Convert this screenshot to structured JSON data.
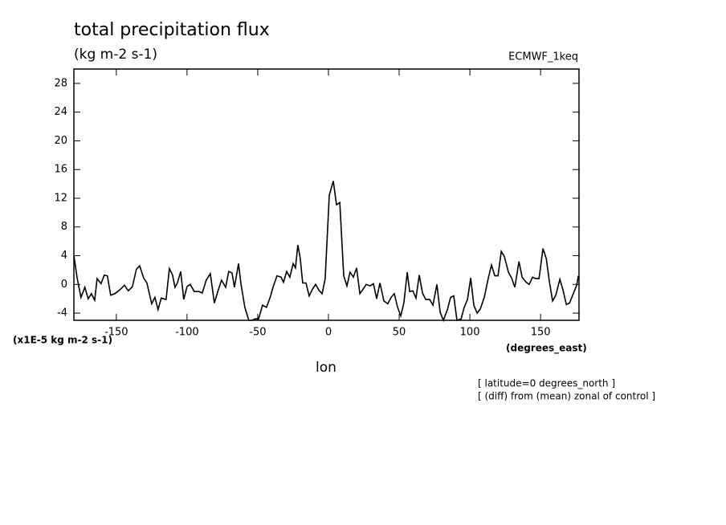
{
  "chart_data": {
    "type": "line",
    "title": "total precipitation flux",
    "subtitle": "(kg m-2 s-1)",
    "dataset_label": "ECMWF_1keq",
    "y_units_label": "(x1E-5 kg m-2 s-1)",
    "x_units_label": "(degrees_east)",
    "xlabel": "lon",
    "notes": [
      "[ latitude=0 degrees_north ]",
      "[ (diff) from (mean) zonal of control ]"
    ],
    "color": "#000000",
    "xlim": [
      -180,
      177.1875
    ],
    "ylim": [
      -5,
      30
    ],
    "xticks": [
      -150,
      -100,
      -50,
      0,
      50,
      100,
      150
    ],
    "yticks": [
      -4,
      0,
      4,
      8,
      12,
      16,
      20,
      24,
      28
    ],
    "x": [
      -180,
      -177.8,
      -175.0,
      -172.2,
      -169.9,
      -167.6,
      -165.3,
      -163.6,
      -160.8,
      -158.5,
      -156.3,
      -154.0,
      -151.1,
      -147.2,
      -144.3,
      -141.5,
      -138.6,
      -135.8,
      -133.5,
      -130.7,
      -128.4,
      -125.0,
      -122.7,
      -120.5,
      -118.2,
      -114.8,
      -112.5,
      -110.2,
      -108.5,
      -106.8,
      -104.5,
      -102.3,
      -100.0,
      -97.7,
      -94.9,
      -91.5,
      -89.2,
      -86.4,
      -83.5,
      -80.7,
      -78.4,
      -75.6,
      -72.7,
      -70.5,
      -68.2,
      -66.5,
      -63.6,
      -61.9,
      -59.1,
      -56.3,
      -54.0,
      -51.7,
      -49.4,
      -46.6,
      -43.8,
      -40.9,
      -39.2,
      -36.4,
      -33.5,
      -31.8,
      -29.5,
      -27.3,
      -25.0,
      -23.3,
      -21.6,
      -19.9,
      -18.2,
      -15.9,
      -13.6,
      -11.4,
      -9.1,
      -6.8,
      -4.5,
      -2.3,
      0.6,
      3.4,
      5.7,
      8.0,
      10.8,
      13.1,
      15.3,
      17.6,
      19.9,
      22.2,
      24.4,
      26.7,
      29.5,
      31.8,
      34.1,
      36.4,
      39.2,
      42.0,
      44.3,
      46.6,
      48.9,
      51.1,
      53.4,
      55.7,
      57.4,
      59.7,
      61.9,
      64.2,
      66.5,
      68.8,
      71.6,
      73.9,
      76.7,
      79.0,
      81.3,
      84.1,
      86.4,
      88.6,
      90.9,
      93.8,
      96.0,
      98.3,
      100.6,
      102.8,
      105.1,
      107.4,
      110.2,
      113.1,
      115.3,
      117.6,
      119.9,
      122.2,
      124.4,
      127.3,
      129.5,
      131.8,
      134.7,
      136.9,
      139.8,
      142.0,
      144.3,
      146.6,
      148.9,
      151.7,
      154.0,
      156.3,
      158.5,
      160.8,
      163.6,
      165.9,
      168.2,
      170.5,
      172.7,
      175.6,
      176.7
    ],
    "values": [
      4.0,
      1.0,
      -1.8,
      -0.4,
      -2.0,
      -1.3,
      -2.2,
      0.8,
      0.1,
      1.3,
      1.2,
      -1.5,
      -1.3,
      -0.7,
      -0.1,
      -0.9,
      -0.3,
      2.1,
      2.6,
      0.9,
      0.2,
      -2.7,
      -1.8,
      -3.5,
      -1.9,
      -2.1,
      2.2,
      1.3,
      -0.4,
      0.2,
      1.8,
      -2.1,
      -0.3,
      0,
      -1.0,
      -1.0,
      -1.2,
      0.6,
      1.5,
      -2.6,
      -1.1,
      0.6,
      -0.4,
      1.8,
      1.6,
      -0.4,
      2.9,
      0.1,
      -3.2,
      -5.0,
      -5.0,
      -4.8,
      -4.8,
      -2.9,
      -3.2,
      -1.6,
      -0.4,
      1.2,
      1.0,
      0.3,
      1.8,
      1.0,
      2.9,
      2.3,
      5.5,
      3.6,
      0.2,
      0.2,
      -1.6,
      -0.7,
      0,
      -0.8,
      -1.3,
      0.8,
      12.4,
      14.4,
      11.1,
      11.4,
      1.2,
      -0.2,
      1.7,
      1.0,
      2.3,
      -1.3,
      -0.7,
      0,
      -0.2,
      0.1,
      -2.0,
      0.2,
      -2.3,
      -2.7,
      -1.8,
      -1.3,
      -3.2,
      -4.4,
      -2.5,
      1.7,
      -1.0,
      -0.9,
      -1.9,
      1.3,
      -1.2,
      -2.1,
      -2.1,
      -2.9,
      0,
      -3.9,
      -5.0,
      -3.5,
      -1.8,
      -1.6,
      -5.0,
      -4.8,
      -3.2,
      -2.1,
      0.9,
      -2.9,
      -4.0,
      -3.4,
      -1.8,
      0.9,
      2.7,
      1.2,
      1.2,
      4.6,
      3.9,
      1.7,
      0.9,
      -0.4,
      3.2,
      1.0,
      0.3,
      0,
      1.0,
      0.8,
      0.8,
      5.0,
      3.6,
      0.3,
      -2.3,
      -1.5,
      0.7,
      -0.8,
      -2.8,
      -2.6,
      -1.5,
      -0.1,
      1.2
    ]
  }
}
